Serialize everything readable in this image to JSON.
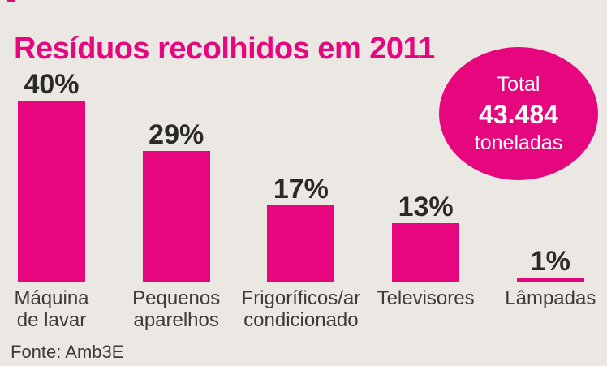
{
  "page": {
    "background": "#EBE8E3",
    "accent_pink": "#E6077F",
    "text_dark": "#2B2927",
    "text_gray": "#3D3B38",
    "badge_text_color": "#FFFFFF"
  },
  "chart_data": {
    "type": "bar",
    "title": "Resíduos recolhidos em 2011",
    "categories": [
      "Máquina de lavar",
      "Pequenos aparelhos",
      "Frigoríficos/ar condicionado",
      "Televisores",
      "Lâmpadas"
    ],
    "category_lines": [
      [
        "Máquina",
        "de lavar"
      ],
      [
        "Pequenos",
        "aparelhos"
      ],
      [
        "Frigoríficos/ar",
        "condicionado"
      ],
      [
        "Televisores"
      ],
      [
        "Lâmpadas"
      ]
    ],
    "values": [
      40,
      29,
      17,
      13,
      1
    ],
    "value_labels": [
      "40%",
      "29%",
      "17%",
      "13%",
      "1%"
    ],
    "unit": "%",
    "ylim": [
      0,
      40
    ],
    "grid": false,
    "legend": false,
    "bar_color": "#E6077F",
    "total_badge": {
      "label": "Total",
      "value": "43.484",
      "unit": "toneladas"
    },
    "source": "Fonte: Amb3E"
  }
}
